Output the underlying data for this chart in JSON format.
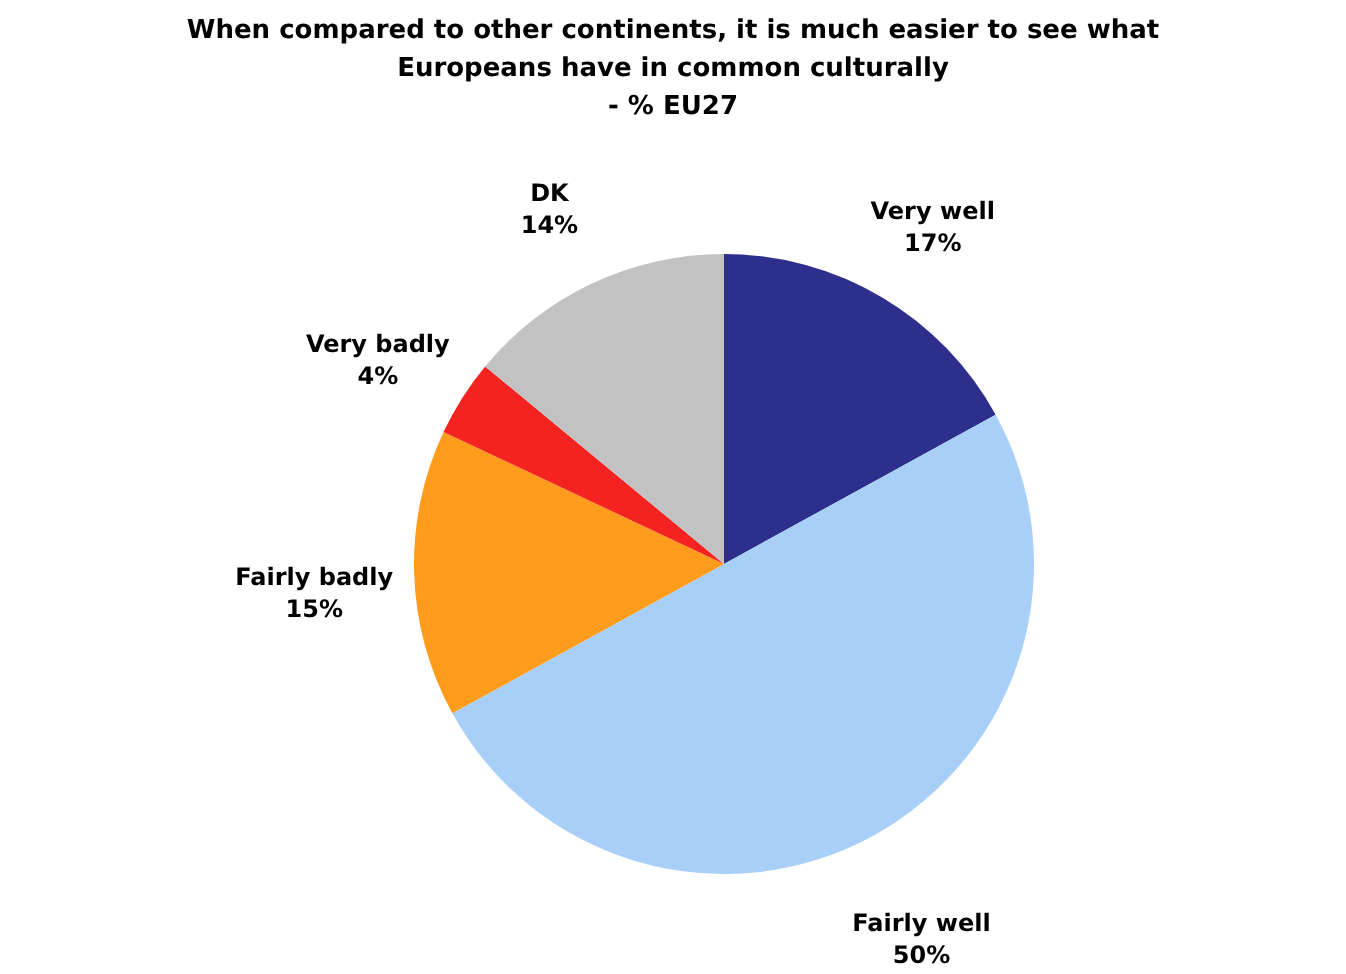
{
  "chart_data": {
    "type": "pie",
    "title": "When compared to other continents, it is much easier to see what Europeans have in common culturally",
    "subtitle": "- % EU27",
    "categories": [
      "Very well",
      "Fairly well",
      "Fairly badly",
      "Very badly",
      "DK"
    ],
    "values": [
      17,
      50,
      15,
      4,
      14
    ],
    "value_labels": [
      "17%",
      "50%",
      "15%",
      "4%",
      "14%"
    ],
    "colors": [
      "#2e2e8c",
      "#a8cff8",
      "#ff9c1c",
      "#f52222",
      "#c2c2c2"
    ],
    "legend": false
  }
}
